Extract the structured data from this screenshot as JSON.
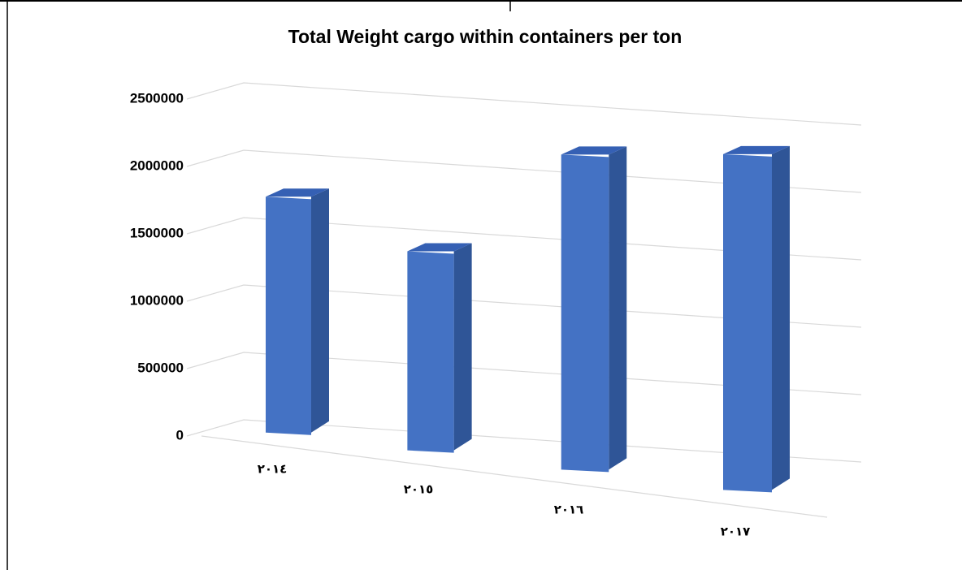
{
  "chart_data": {
    "type": "bar3d",
    "title": "Total Weight cargo within containers per ton",
    "categories": [
      "٢٠١٤",
      "٢٠١٥",
      "٢٠١٦",
      "٢٠١٧"
    ],
    "values": [
      1750000,
      1450000,
      2250000,
      2350000
    ],
    "color": "#4472c4",
    "ylim": [
      0,
      2500000
    ],
    "yticks": [
      0,
      500000,
      1000000,
      1500000,
      2000000,
      2500000
    ],
    "grid": true
  }
}
